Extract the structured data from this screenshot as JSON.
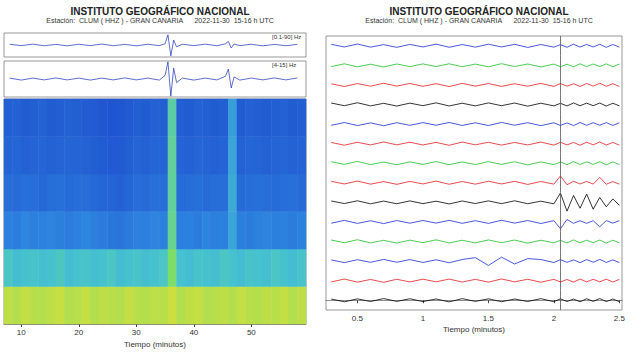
{
  "chart_data": [
    {
      "type": "spectrogram",
      "title": "INSTITUTO GEOGRÁFICO NACIONAL",
      "subtitle": "Estación:  CLUM ( HHZ ) - GRAN CANARIA      2022-11-30  15-16 h UTC",
      "xlabel": "Tiempo (minutos)",
      "xlim": [
        7,
        59.5
      ],
      "xticks": [
        10,
        20,
        30,
        40,
        50
      ],
      "tick_labels": "x",
      "traces": [
        {
          "label": "[0.1-90] Hz",
          "color": "#1a2fb8",
          "ylim": [
            -1,
            1
          ],
          "x": [
            8,
            10,
            12,
            14,
            16,
            18,
            20,
            22,
            24,
            26,
            28,
            30,
            32,
            34,
            35,
            35.5,
            36,
            36.5,
            37,
            38,
            40,
            42,
            44,
            45.5,
            46,
            46.5,
            47,
            48,
            50,
            52,
            54,
            56,
            58
          ],
          "values": [
            0.06,
            -0.05,
            0.07,
            -0.06,
            0.05,
            -0.07,
            0.06,
            -0.05,
            0.08,
            -0.06,
            0.05,
            -0.07,
            0.06,
            -0.05,
            0.1,
            0.85,
            -0.9,
            0.4,
            -0.15,
            0.06,
            -0.05,
            0.07,
            -0.06,
            0.1,
            0.3,
            -0.25,
            0.08,
            -0.05,
            0.06,
            -0.07,
            0.05,
            -0.06,
            0.05
          ]
        },
        {
          "label": "[4-15] Hz",
          "color": "#1a2fb8",
          "ylim": [
            -1,
            1
          ],
          "x": [
            8,
            10,
            12,
            14,
            16,
            18,
            20,
            22,
            24,
            26,
            28,
            30,
            32,
            34,
            35,
            35.5,
            36,
            36.5,
            37,
            38,
            40,
            42,
            44,
            45.5,
            46,
            46.5,
            47,
            48,
            50,
            52,
            54,
            56,
            58
          ],
          "values": [
            0.05,
            -0.06,
            0.05,
            -0.05,
            0.06,
            -0.05,
            0.05,
            -0.06,
            0.05,
            -0.05,
            0.06,
            -0.05,
            0.05,
            -0.06,
            0.2,
            0.95,
            -0.95,
            0.6,
            -0.2,
            0.05,
            -0.06,
            0.05,
            -0.05,
            0.15,
            0.55,
            -0.5,
            0.12,
            -0.06,
            0.05,
            -0.05,
            0.06,
            -0.05,
            0.06
          ]
        }
      ],
      "spectrogram": {
        "zlim": [
          0,
          1
        ],
        "cells": [
          [
            0.92,
            0.9,
            0.93,
            0.91,
            0.9,
            0.92,
            0.94,
            0.9,
            0.91,
            0.93,
            0.9,
            0.92,
            0.91,
            0.9,
            0.93,
            0.91,
            0.9,
            0.92,
            0.91,
            0.95,
            0.9,
            0.92,
            0.93,
            0.9,
            0.91,
            0.92,
            0.9,
            0.93,
            0.91,
            0.9,
            0.92,
            0.91,
            0.93,
            0.9,
            0.92
          ],
          [
            0.62,
            0.58,
            0.6,
            0.61,
            0.59,
            0.6,
            0.63,
            0.58,
            0.6,
            0.61,
            0.59,
            0.6,
            0.62,
            0.58,
            0.6,
            0.61,
            0.59,
            0.6,
            0.62,
            0.8,
            0.6,
            0.58,
            0.61,
            0.6,
            0.59,
            0.62,
            0.6,
            0.58,
            0.61,
            0.6,
            0.59,
            0.62,
            0.6,
            0.58,
            0.61
          ],
          [
            0.38,
            0.36,
            0.4,
            0.37,
            0.38,
            0.39,
            0.37,
            0.36,
            0.38,
            0.4,
            0.37,
            0.36,
            0.34,
            0.33,
            0.35,
            0.38,
            0.37,
            0.39,
            0.38,
            0.72,
            0.37,
            0.38,
            0.36,
            0.39,
            0.37,
            0.38,
            0.5,
            0.37,
            0.36,
            0.38,
            0.39,
            0.37,
            0.38,
            0.36,
            0.38
          ],
          [
            0.3,
            0.29,
            0.31,
            0.3,
            0.28,
            0.3,
            0.31,
            0.29,
            0.3,
            0.3,
            0.28,
            0.27,
            0.26,
            0.25,
            0.27,
            0.3,
            0.29,
            0.31,
            0.3,
            0.7,
            0.29,
            0.3,
            0.31,
            0.29,
            0.3,
            0.3,
            0.52,
            0.29,
            0.3,
            0.31,
            0.3,
            0.29,
            0.3,
            0.31,
            0.29
          ],
          [
            0.26,
            0.27,
            0.25,
            0.26,
            0.27,
            0.25,
            0.26,
            0.27,
            0.26,
            0.25,
            0.24,
            0.23,
            0.22,
            0.22,
            0.24,
            0.26,
            0.25,
            0.27,
            0.26,
            0.7,
            0.26,
            0.25,
            0.27,
            0.26,
            0.25,
            0.26,
            0.5,
            0.25,
            0.27,
            0.26,
            0.25,
            0.26,
            0.27,
            0.25,
            0.26
          ],
          [
            0.24,
            0.25,
            0.23,
            0.24,
            0.25,
            0.23,
            0.24,
            0.25,
            0.24,
            0.23,
            0.22,
            0.21,
            0.2,
            0.21,
            0.22,
            0.24,
            0.23,
            0.25,
            0.24,
            0.68,
            0.24,
            0.23,
            0.25,
            0.24,
            0.23,
            0.24,
            0.48,
            0.23,
            0.25,
            0.24,
            0.23,
            0.24,
            0.25,
            0.23,
            0.24
          ]
        ]
      }
    },
    {
      "type": "helicorder",
      "title": "INSTITUTO GEOGRÁFICO NACIONAL",
      "subtitle": "Estación:  CLUM ( HHZ ) - GRAN CANARIA      2022-11-30  15-16 h UTC",
      "xlabel": "Tiempo (minutos)",
      "xlim": [
        0.26,
        2.52
      ],
      "xticks": [
        0.5,
        1,
        1.5,
        2,
        2.5
      ],
      "ylim": [
        -1,
        1
      ],
      "tick_labels": "x",
      "vline": 2.05,
      "x": [
        0.3,
        0.4,
        0.5,
        0.6,
        0.7,
        0.8,
        0.9,
        1.0,
        1.1,
        1.2,
        1.3,
        1.4,
        1.5,
        1.6,
        1.7,
        1.8,
        1.9,
        2.0,
        2.05,
        2.1,
        2.15,
        2.2,
        2.25,
        2.3,
        2.35,
        2.4,
        2.45,
        2.5
      ],
      "series": [
        {
          "color": "#1a2fd0",
          "values": [
            0.15,
            -0.12,
            0.18,
            -0.14,
            0.12,
            -0.16,
            0.14,
            -0.12,
            0.17,
            -0.15,
            0.13,
            -0.14,
            0.16,
            -0.12,
            0.15,
            -0.17,
            0.13,
            -0.14,
            0.12,
            -0.15,
            0.16,
            -0.13,
            0.14,
            -0.12,
            0.15,
            -0.16,
            0.13,
            -0.14
          ]
        },
        {
          "color": "#1fbf2a",
          "values": [
            -0.13,
            0.16,
            -0.15,
            0.12,
            -0.17,
            0.14,
            -0.13,
            0.15,
            -0.12,
            0.16,
            -0.14,
            0.13,
            -0.15,
            0.17,
            -0.12,
            0.14,
            -0.16,
            0.13,
            -0.14,
            0.12,
            -0.15,
            0.16,
            -0.13,
            0.14,
            -0.12,
            0.15,
            -0.14,
            0.13
          ]
        },
        {
          "color": "#e01f1f",
          "values": [
            0.12,
            -0.16,
            0.14,
            -0.13,
            0.17,
            -0.12,
            0.15,
            -0.14,
            0.13,
            -0.17,
            0.16,
            -0.12,
            0.14,
            -0.15,
            0.12,
            -0.13,
            0.16,
            -0.15,
            0.14,
            -0.13,
            0.12,
            -0.16,
            0.15,
            -0.12,
            0.17,
            -0.14,
            0.12,
            -0.15
          ]
        },
        {
          "color": "#000000",
          "values": [
            0.15,
            -0.12,
            0.18,
            -0.14,
            0.12,
            -0.16,
            0.14,
            -0.12,
            0.17,
            -0.15,
            0.13,
            -0.14,
            0.16,
            -0.12,
            0.15,
            -0.17,
            0.13,
            -0.14,
            0.12,
            -0.15,
            0.16,
            -0.13,
            0.14,
            -0.12,
            0.15,
            -0.16,
            0.13,
            -0.14
          ]
        },
        {
          "color": "#1a2fd0",
          "values": [
            -0.13,
            0.16,
            -0.15,
            0.12,
            -0.17,
            0.14,
            -0.13,
            0.15,
            -0.12,
            0.16,
            -0.14,
            0.13,
            -0.15,
            0.17,
            -0.12,
            0.14,
            -0.16,
            0.13,
            -0.14,
            0.12,
            -0.15,
            0.16,
            -0.13,
            0.14,
            -0.12,
            0.15,
            -0.14,
            0.13
          ]
        },
        {
          "color": "#e01f1f",
          "values": [
            0.12,
            -0.16,
            0.14,
            -0.13,
            0.17,
            -0.12,
            0.15,
            -0.14,
            0.13,
            -0.17,
            0.16,
            -0.12,
            0.14,
            -0.15,
            0.12,
            -0.13,
            0.16,
            -0.15,
            0.14,
            -0.13,
            0.12,
            -0.16,
            0.15,
            -0.12,
            0.17,
            -0.14,
            0.12,
            -0.15
          ]
        },
        {
          "color": "#1fbf2a",
          "values": [
            0.15,
            -0.12,
            0.18,
            -0.14,
            0.12,
            -0.16,
            0.14,
            -0.12,
            0.17,
            -0.15,
            0.13,
            -0.14,
            0.16,
            -0.12,
            0.15,
            -0.17,
            0.13,
            -0.14,
            0.12,
            -0.15,
            0.16,
            -0.13,
            0.14,
            -0.12,
            0.15,
            -0.16,
            0.13,
            -0.14
          ]
        },
        {
          "color": "#e01f1f",
          "values": [
            0.15,
            -0.12,
            0.18,
            -0.14,
            0.12,
            -0.16,
            0.14,
            -0.12,
            0.17,
            -0.15,
            0.13,
            -0.14,
            0.16,
            -0.12,
            0.15,
            -0.17,
            0.13,
            -0.14,
            0.7,
            -0.2,
            0.15,
            -0.12,
            0.14,
            -0.13,
            0.55,
            -0.15,
            0.12,
            -0.14
          ]
        },
        {
          "color": "#000000",
          "values": [
            0.14,
            -0.12,
            0.16,
            -0.15,
            0.13,
            -0.14,
            0.15,
            -0.13,
            0.12,
            -0.16,
            0.14,
            -0.12,
            0.15,
            -0.13,
            0.16,
            -0.14,
            0.12,
            -0.15,
            0.95,
            -0.9,
            0.7,
            -0.6,
            0.85,
            -0.7,
            0.5,
            -0.45,
            0.35,
            -0.3
          ]
        },
        {
          "color": "#1a2fd0",
          "values": [
            -0.13,
            0.16,
            -0.15,
            0.12,
            -0.17,
            0.14,
            -0.13,
            0.15,
            -0.12,
            0.16,
            -0.14,
            0.13,
            -0.15,
            0.17,
            -0.12,
            0.14,
            -0.16,
            0.13,
            -0.7,
            0.25,
            -0.14,
            0.12,
            -0.15,
            0.13,
            -0.5,
            0.14,
            -0.12,
            0.13
          ]
        },
        {
          "color": "#1fbf2a",
          "values": [
            0.15,
            -0.12,
            0.18,
            -0.14,
            0.12,
            -0.16,
            0.14,
            -0.12,
            0.17,
            -0.15,
            0.13,
            -0.14,
            0.16,
            -0.12,
            0.15,
            -0.17,
            0.13,
            -0.14,
            0.12,
            -0.15,
            0.16,
            -0.13,
            0.14,
            -0.12,
            0.15,
            -0.16,
            0.13,
            -0.14
          ]
        },
        {
          "color": "#1a2fd0",
          "values": [
            0.12,
            -0.16,
            0.14,
            -0.13,
            0.17,
            -0.12,
            0.15,
            -0.14,
            0.13,
            -0.17,
            0.16,
            0.35,
            -0.45,
            0.4,
            -0.3,
            0.25,
            0.16,
            -0.15,
            0.14,
            -0.13,
            0.12,
            -0.16,
            0.15,
            -0.12,
            0.17,
            -0.14,
            0.12,
            -0.15
          ]
        },
        {
          "color": "#e01f1f",
          "values": [
            -0.13,
            0.16,
            -0.15,
            0.12,
            -0.17,
            0.14,
            -0.13,
            0.15,
            -0.12,
            0.16,
            -0.14,
            0.13,
            -0.15,
            0.17,
            -0.12,
            0.14,
            -0.16,
            0.13,
            -0.14,
            0.12,
            -0.15,
            0.16,
            -0.13,
            0.14,
            -0.12,
            0.15,
            -0.14,
            0.13
          ]
        },
        {
          "color": "#000000",
          "values": [
            0.12,
            -0.16,
            0.14,
            -0.13,
            0.17,
            -0.12,
            0.15,
            -0.14,
            0.13,
            -0.17,
            0.16,
            -0.12,
            0.14,
            -0.15,
            0.12,
            -0.13,
            0.16,
            -0.15,
            0.14,
            -0.13,
            0.12,
            -0.16,
            0.15,
            -0.12,
            0.17,
            -0.14,
            0.12,
            -0.15
          ]
        }
      ]
    }
  ]
}
